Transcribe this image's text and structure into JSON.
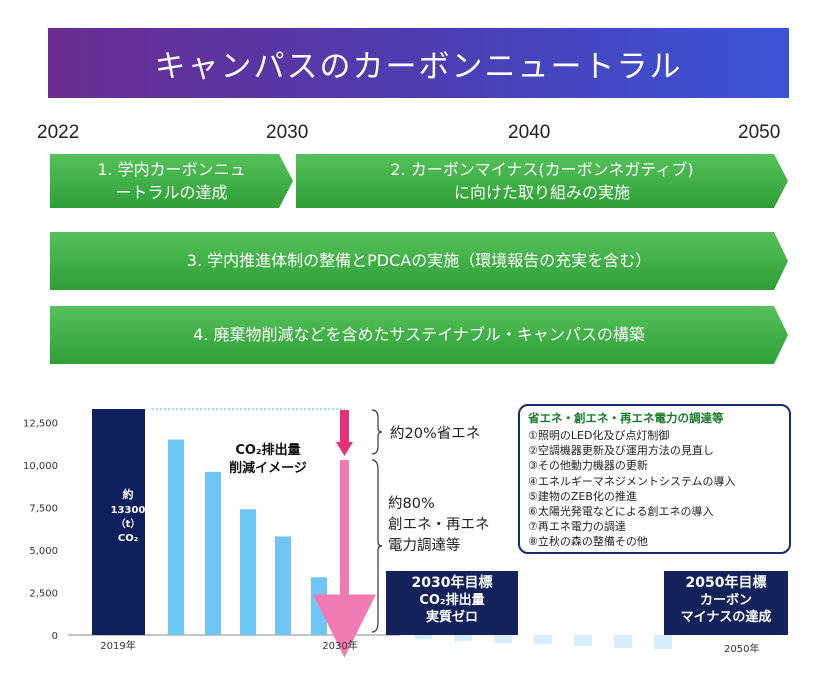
{
  "title": "キャンパスのカーボンニュートラル",
  "timeline": {
    "years": [
      "2022",
      "2030",
      "2040",
      "2050"
    ],
    "arrows": [
      {
        "label_line1": "1. 学内カーボンニュ",
        "label_line2": "ートラルの達成"
      },
      {
        "label_line1": "2. カーボンマイナス(カーボンネガティブ)",
        "label_line2": "に向けた取り組みの実施"
      },
      {
        "label_line1": "3. 学内推進体制の整備とPDCAの実施（環境報告の充実を含む）",
        "label_line2": ""
      },
      {
        "label_line1": "4. 廃棄物削減などを含めたサステイナブル・キャンパスの構築",
        "label_line2": ""
      }
    ]
  },
  "chart_data": {
    "type": "bar",
    "title_line1": "CO₂排出量",
    "title_line2": "削減イメージ",
    "ylim": [
      0,
      13300
    ],
    "yticks": [
      0,
      2500,
      5000,
      7500,
      10000,
      12500
    ],
    "ytick_labels": [
      "0",
      "2,500",
      "5,000",
      "7,500",
      "10,000",
      "12,500"
    ],
    "x_labels": [
      "2019年",
      "2030年",
      "2050年"
    ],
    "base_bar": {
      "value": 13300,
      "label_line1": "約",
      "label_line2": "13300",
      "label_line3": "（t）",
      "label_line4": "CO₂"
    },
    "reduction_bars": [
      11500,
      9600,
      7400,
      5800,
      3400
    ],
    "negative_bars": [
      -250,
      -350,
      -450,
      -550,
      -650,
      -750,
      -850
    ],
    "base_color": "#0d1f5c",
    "bar_color": "#6ec6f5",
    "neg_color": "#d6eef9"
  },
  "notes": {
    "savings": "約20%省エネ",
    "renewable_line1": "約80%",
    "renewable_line2": "創エネ・再エネ",
    "renewable_line3": "電力調達等"
  },
  "policy": {
    "title": "省エネ・創エネ・再エネ電力の調達等",
    "items": [
      "①照明のLED化及び点灯制御",
      "②空調機器更新及び運用方法の見直し",
      "③その他動力機器の更新",
      "④エネルギーマネジメントシステムの導入",
      "⑤建物のZEB化の推進",
      "⑥太陽光発電などによる創エネの導入",
      "⑦再エネ電力の調達",
      "⑧立秋の森の整備その他"
    ]
  },
  "goals": {
    "g2030": {
      "title": "2030年目標",
      "line2": "CO₂排出量",
      "line3": "実質ゼロ"
    },
    "g2050": {
      "title": "2050年目標",
      "line2": "カーボン",
      "line3": "マイナスの達成"
    }
  },
  "colors": {
    "accent_purple": "#6a2c91",
    "accent_blue": "#3a53d6",
    "green": "#3aaa3f",
    "navy": "#13225a",
    "pink": "#e8307a"
  }
}
